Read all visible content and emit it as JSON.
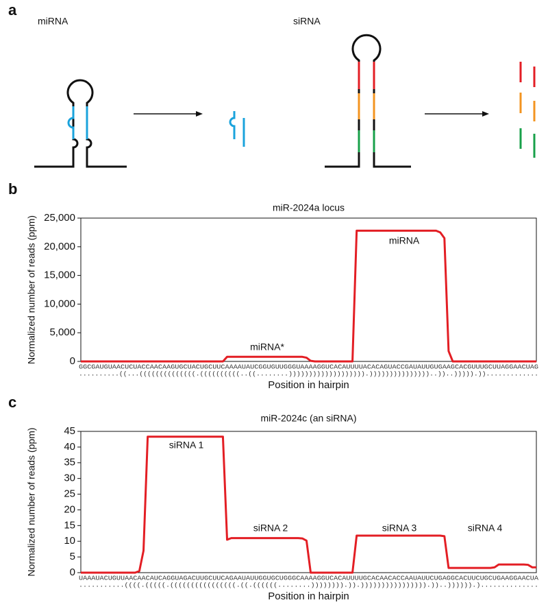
{
  "panel_labels": [
    "a",
    "b",
    "c"
  ],
  "diagram": {
    "labels": [
      "miRNA",
      "siRNA"
    ]
  },
  "chart_data": [
    {
      "type": "line",
      "title": "miR-2024a locus",
      "y_label": "Normalized number of reads (ppm)",
      "x_label": "Position in hairpin",
      "sequence": "GGCGAUGUAACUCUACCAACAAGUGCUACUGCUUCAAAAUAUCGGUGUUGGGUAAAAGGUCACAUUUUACACAGUACCGAUAUUGUGAAGCACGUUUGCUUAGGAACUAG",
      "structure": "..........((...((((((((((((((.((((((((((..((........))))))))))))))))))).)))))))))))))))..))..))))).)).............",
      "color": "#e31e24",
      "values": [
        0,
        0,
        0,
        0,
        0,
        0,
        0,
        0,
        0,
        0,
        0,
        0,
        0,
        0,
        0,
        0,
        0,
        0,
        0,
        0,
        0,
        0,
        0,
        0,
        0,
        0,
        0,
        0,
        0,
        0,
        0,
        0,
        0,
        0,
        0,
        800,
        800,
        800,
        800,
        800,
        800,
        800,
        800,
        800,
        800,
        800,
        800,
        800,
        800,
        800,
        800,
        800,
        800,
        800,
        650,
        100,
        0,
        0,
        0,
        0,
        0,
        0,
        0,
        0,
        0,
        0,
        22800,
        22800,
        22800,
        22800,
        22800,
        22800,
        22800,
        22800,
        22800,
        22800,
        22800,
        22800,
        22800,
        22800,
        22800,
        22800,
        22800,
        22800,
        22800,
        22800,
        22500,
        21500,
        1800,
        0,
        0,
        0,
        0,
        0,
        0,
        0,
        0,
        0,
        0,
        0,
        0,
        0,
        0,
        0,
        0,
        0,
        0,
        0,
        0,
        0
      ],
      "annotations": [
        "miRNA",
        "miRNA*"
      ],
      "ylim": [
        0,
        25000
      ],
      "yticks": [
        0,
        {
          "value": 5000,
          "label": "5,000"
        },
        {
          "value": 10000,
          "label": "10,000"
        },
        {
          "value": 15000,
          "label": "15,000"
        },
        {
          "value": 20000,
          "label": "20,000"
        },
        {
          "value": 25000,
          "label": "25,000"
        }
      ]
    },
    {
      "type": "line",
      "title": "miR-2024c (an siRNA)",
      "y_label": "Normalized number of reads (ppm)",
      "x_label": "Position in hairpin",
      "sequence": "UAAAUACUGUUAACAACAUCAGGUAGACUUGCUUCAGAAUAUUGGUGCUGGGCAAAAGGUCACAUUUUGCACAACACCAAUAUUCUGAGGCACUUCUGCUGAAGGAACUA",
      "structure": "...........((((.(((((.((((((((((((((((.((.((((((........)))))))).)).)))))))))))))))).))..)))))).)..............",
      "color": "#e31e24",
      "values": [
        0,
        0,
        0,
        0,
        0,
        0,
        0,
        0,
        0,
        0,
        0,
        0,
        0,
        0,
        0.5,
        7,
        43.3,
        43.3,
        43.3,
        43.3,
        43.3,
        43.3,
        43.3,
        43.3,
        43.3,
        43.3,
        43.3,
        43.3,
        43.3,
        43.3,
        43.3,
        43.3,
        43.3,
        43.3,
        43.3,
        10.5,
        11,
        11,
        11,
        11,
        11,
        11,
        11,
        11,
        11,
        11,
        11,
        11,
        11,
        11,
        11,
        11,
        11,
        10.9,
        10.2,
        0,
        0,
        0,
        0,
        0,
        0,
        0,
        0,
        0,
        0,
        0,
        11.8,
        11.8,
        11.8,
        11.8,
        11.8,
        11.8,
        11.8,
        11.8,
        11.8,
        11.8,
        11.8,
        11.8,
        11.8,
        11.8,
        11.8,
        11.8,
        11.8,
        11.8,
        11.8,
        11.8,
        11.8,
        11.6,
        1.5,
        1.5,
        1.5,
        1.5,
        1.5,
        1.5,
        1.5,
        1.5,
        1.5,
        1.5,
        1.5,
        1.7,
        2.6,
        2.6,
        2.6,
        2.6,
        2.6,
        2.6,
        2.6,
        2.5,
        1.7,
        1.7
      ],
      "annotations": [
        "siRNA 1",
        "siRNA 2",
        "siRNA 3",
        "siRNA 4"
      ],
      "ylim": [
        0,
        45
      ],
      "yticks": [
        0,
        5,
        10,
        15,
        20,
        25,
        30,
        35,
        40,
        45
      ]
    }
  ]
}
